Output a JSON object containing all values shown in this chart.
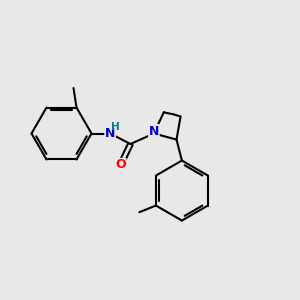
{
  "background_color": "#e8e8e8",
  "bond_color": "#000000",
  "bond_width": 1.5,
  "atom_colors": {
    "N": "#0000cc",
    "O": "#ff0000",
    "H": "#008080",
    "C": "#000000"
  },
  "figsize": [
    3.0,
    3.0
  ],
  "dpi": 100
}
